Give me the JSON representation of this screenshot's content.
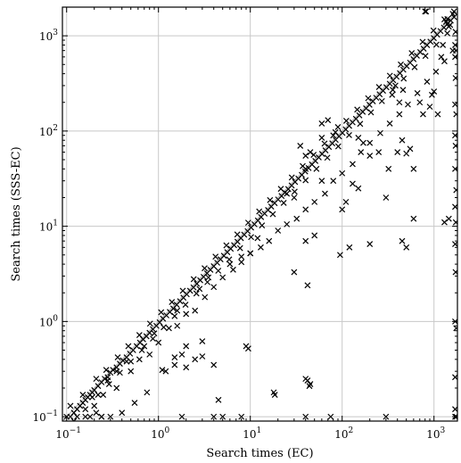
{
  "chart_data": {
    "type": "scatter",
    "title": "",
    "xlabel": "Search times (EC)",
    "ylabel": "Search times (SSS-EC)",
    "x_scale": "log",
    "y_scale": "log",
    "xlim": [
      0.09,
      1800
    ],
    "ylim": [
      0.09,
      2000
    ],
    "grid": true,
    "legend": "none",
    "marker": "x",
    "marker_color": "#000000",
    "reference_lines": [
      {
        "name": "y = x",
        "slope": 1,
        "color": "#aaaaaa"
      }
    ],
    "x_ticks": [
      {
        "value": 0.1,
        "base": "10",
        "exp": "−1"
      },
      {
        "value": 1,
        "base": "10",
        "exp": "0"
      },
      {
        "value": 10,
        "base": "10",
        "exp": "1"
      },
      {
        "value": 100,
        "base": "10",
        "exp": "2"
      },
      {
        "value": 1000,
        "base": "10",
        "exp": "3"
      }
    ],
    "y_ticks": [
      {
        "value": 0.1,
        "base": "10",
        "exp": "−1"
      },
      {
        "value": 1,
        "base": "10",
        "exp": "0"
      },
      {
        "value": 10,
        "base": "10",
        "exp": "1"
      },
      {
        "value": 100,
        "base": "10",
        "exp": "2"
      },
      {
        "value": 1000,
        "base": "10",
        "exp": "3"
      }
    ],
    "points": [
      [
        0.1,
        0.1
      ],
      [
        0.11,
        0.1
      ],
      [
        0.12,
        0.11
      ],
      [
        0.13,
        0.12
      ],
      [
        0.14,
        0.13
      ],
      [
        0.15,
        0.14
      ],
      [
        0.16,
        0.15
      ],
      [
        0.17,
        0.16
      ],
      [
        0.18,
        0.17
      ],
      [
        0.19,
        0.18
      ],
      [
        0.2,
        0.19
      ],
      [
        0.22,
        0.21
      ],
      [
        0.24,
        0.23
      ],
      [
        0.26,
        0.25
      ],
      [
        0.28,
        0.26
      ],
      [
        0.3,
        0.29
      ],
      [
        0.32,
        0.31
      ],
      [
        0.35,
        0.33
      ],
      [
        0.38,
        0.36
      ],
      [
        0.41,
        0.39
      ],
      [
        0.45,
        0.42
      ],
      [
        0.49,
        0.46
      ],
      [
        0.53,
        0.5
      ],
      [
        0.58,
        0.55
      ],
      [
        0.63,
        0.6
      ],
      [
        0.68,
        0.65
      ],
      [
        0.74,
        0.7
      ],
      [
        0.8,
        0.76
      ],
      [
        0.87,
        0.83
      ],
      [
        0.95,
        0.9
      ],
      [
        1.03,
        0.98
      ],
      [
        1.12,
        1.07
      ],
      [
        1.22,
        1.16
      ],
      [
        1.33,
        1.26
      ],
      [
        1.45,
        1.37
      ],
      [
        1.58,
        1.5
      ],
      [
        1.72,
        1.63
      ],
      [
        1.87,
        1.78
      ],
      [
        2.03,
        1.93
      ],
      [
        2.21,
        2.1
      ],
      [
        2.41,
        2.28
      ],
      [
        2.62,
        2.49
      ],
      [
        2.85,
        2.71
      ],
      [
        3.1,
        2.94
      ],
      [
        3.38,
        3.21
      ],
      [
        3.68,
        3.49
      ],
      [
        4.0,
        3.8
      ],
      [
        4.36,
        4.14
      ],
      [
        4.74,
        4.5
      ],
      [
        5.16,
        4.9
      ],
      [
        5.62,
        5.34
      ],
      [
        6.12,
        5.81
      ],
      [
        6.66,
        6.33
      ],
      [
        7.25,
        6.89
      ],
      [
        7.89,
        7.5
      ],
      [
        8.59,
        8.16
      ],
      [
        9.35,
        8.88
      ],
      [
        10.2,
        9.7
      ],
      [
        11.1,
        10.5
      ],
      [
        12.1,
        11.5
      ],
      [
        13.1,
        12.5
      ],
      [
        14.3,
        13.6
      ],
      [
        15.6,
        14.8
      ],
      [
        16.9,
        16.1
      ],
      [
        18.4,
        17.5
      ],
      [
        20.1,
        19.1
      ],
      [
        21.9,
        20.8
      ],
      [
        23.8,
        22.6
      ],
      [
        25.9,
        24.6
      ],
      [
        28.2,
        26.8
      ],
      [
        30.7,
        29.2
      ],
      [
        33.4,
        31.7
      ],
      [
        36.4,
        34.6
      ],
      [
        39.6,
        37.6
      ],
      [
        43.1,
        40.9
      ],
      [
        46.9,
        44.6
      ],
      [
        51.1,
        48.5
      ],
      [
        55.6,
        52.8
      ],
      [
        60.5,
        57.5
      ],
      [
        65.9,
        62.6
      ],
      [
        71.7,
        68.1
      ],
      [
        78.1,
        74.2
      ],
      [
        85.0,
        80.8
      ],
      [
        92.5,
        87.9
      ],
      [
        100.7,
        95.7
      ],
      [
        109.6,
        104.1
      ],
      [
        119.3,
        113.3
      ],
      [
        129.9,
        123.4
      ],
      [
        141.4,
        134.3
      ],
      [
        153.9,
        146.2
      ],
      [
        167.5,
        159.1
      ],
      [
        182.3,
        173.2
      ],
      [
        198.5,
        188.6
      ],
      [
        216.0,
        205.2
      ],
      [
        235.2,
        223.4
      ],
      [
        256.0,
        243.2
      ],
      [
        278.7,
        264.8
      ],
      [
        303.4,
        288.2
      ],
      [
        330.3,
        313.8
      ],
      [
        359.5,
        341.5
      ],
      [
        391.4,
        371.8
      ],
      [
        426.1,
        404.8
      ],
      [
        463.8,
        440.6
      ],
      [
        504.9,
        479.7
      ],
      [
        549.6,
        522.1
      ],
      [
        598.3,
        568.4
      ],
      [
        651.3,
        618.7
      ],
      [
        709.0,
        673.6
      ],
      [
        771.8,
        733.2
      ],
      [
        840.2,
        798.2
      ],
      [
        914.6,
        868.9
      ],
      [
        995.6,
        945.8
      ],
      [
        1083,
        1029
      ],
      [
        1179,
        1120
      ],
      [
        1284,
        1220
      ],
      [
        1397,
        1327
      ],
      [
        1521,
        1445
      ],
      [
        1656,
        1573
      ],
      [
        0.11,
        0.13
      ],
      [
        0.15,
        0.17
      ],
      [
        0.21,
        0.25
      ],
      [
        0.27,
        0.31
      ],
      [
        0.36,
        0.42
      ],
      [
        0.47,
        0.55
      ],
      [
        0.62,
        0.72
      ],
      [
        0.81,
        0.95
      ],
      [
        1.07,
        1.25
      ],
      [
        1.4,
        1.6
      ],
      [
        1.84,
        2.1
      ],
      [
        2.42,
        2.78
      ],
      [
        3.18,
        3.62
      ],
      [
        4.18,
        4.8
      ],
      [
        5.49,
        6.3
      ],
      [
        7.22,
        8.2
      ],
      [
        9.49,
        10.9
      ],
      [
        12.5,
        14.3
      ],
      [
        16.4,
        18.8
      ],
      [
        21.5,
        24.7
      ],
      [
        28.3,
        32.5
      ],
      [
        37.2,
        42.8
      ],
      [
        48.9,
        56.2
      ],
      [
        64.3,
        73.9
      ],
      [
        84.5,
        97.2
      ],
      [
        111,
        128
      ],
      [
        146,
        168
      ],
      [
        192,
        221
      ],
      [
        252,
        290
      ],
      [
        331,
        381
      ],
      [
        435,
        500
      ],
      [
        572,
        657
      ],
      [
        752,
        864
      ],
      [
        988,
        1136
      ],
      [
        1299,
        1490
      ],
      [
        0.12,
        0.09
      ],
      [
        0.16,
        0.12
      ],
      [
        0.22,
        0.17
      ],
      [
        0.29,
        0.22
      ],
      [
        0.38,
        0.29
      ],
      [
        0.5,
        0.38
      ],
      [
        0.66,
        0.5
      ],
      [
        0.87,
        0.66
      ],
      [
        1.14,
        0.87
      ],
      [
        1.5,
        1.14
      ],
      [
        1.97,
        1.5
      ],
      [
        2.59,
        1.97
      ],
      [
        3.41,
        2.59
      ],
      [
        4.48,
        3.41
      ],
      [
        5.89,
        4.48
      ],
      [
        7.74,
        5.89
      ],
      [
        10.2,
        7.7
      ],
      [
        13.4,
        10.2
      ],
      [
        17.6,
        13.4
      ],
      [
        23.1,
        17.6
      ],
      [
        30.4,
        23.1
      ],
      [
        40.0,
        30.4
      ],
      [
        52.5,
        40.0
      ],
      [
        69.0,
        52.5
      ],
      [
        90.7,
        69.0
      ],
      [
        119,
        90.7
      ],
      [
        157,
        119
      ],
      [
        206,
        157
      ],
      [
        271,
        206
      ],
      [
        356,
        271
      ],
      [
        468,
        356
      ],
      [
        615,
        468
      ],
      [
        808,
        615
      ],
      [
        1062,
        808
      ],
      [
        1396,
        1062
      ],
      [
        0.16,
        0.1
      ],
      [
        0.25,
        0.17
      ],
      [
        0.35,
        0.2
      ],
      [
        0.5,
        0.3
      ],
      [
        0.62,
        0.4
      ],
      [
        0.8,
        0.45
      ],
      [
        1.0,
        0.6
      ],
      [
        1.3,
        0.85
      ],
      [
        1.6,
        0.9
      ],
      [
        2.0,
        1.2
      ],
      [
        2.5,
        1.3
      ],
      [
        3.2,
        1.8
      ],
      [
        4.0,
        2.3
      ],
      [
        5.0,
        2.9
      ],
      [
        6.5,
        3.5
      ],
      [
        8.0,
        4.2
      ],
      [
        10.0,
        5.2
      ],
      [
        13.0,
        6.0
      ],
      [
        16.0,
        7.0
      ],
      [
        20.0,
        9.0
      ],
      [
        25.0,
        10.5
      ],
      [
        32.0,
        12.0
      ],
      [
        40.0,
        15.0
      ],
      [
        50.0,
        18.0
      ],
      [
        65.0,
        22.0
      ],
      [
        80.0,
        30.0
      ],
      [
        100,
        36.0
      ],
      [
        130,
        45.0
      ],
      [
        160,
        60.0
      ],
      [
        200,
        75.0
      ],
      [
        260,
        95.0
      ],
      [
        330,
        120
      ],
      [
        420,
        150
      ],
      [
        520,
        190
      ],
      [
        660,
        250
      ],
      [
        840,
        330
      ],
      [
        1050,
        420
      ],
      [
        1300,
        540
      ],
      [
        1600,
        700
      ],
      [
        0.13,
        0.1
      ],
      [
        0.18,
        0.1
      ],
      [
        0.24,
        0.1
      ],
      [
        0.3,
        0.1
      ],
      [
        0.4,
        0.11
      ],
      [
        0.55,
        0.14
      ],
      [
        0.75,
        0.18
      ],
      [
        1.1,
        0.31
      ],
      [
        1.2,
        0.3
      ],
      [
        1.5,
        0.35
      ],
      [
        1.8,
        0.45
      ],
      [
        2.0,
        0.33
      ],
      [
        2.5,
        0.4
      ],
      [
        3.0,
        0.43
      ],
      [
        4.0,
        0.35
      ],
      [
        4.5,
        0.15
      ],
      [
        5.0,
        0.1
      ],
      [
        9.0,
        0.55
      ],
      [
        9.5,
        0.52
      ],
      [
        18.0,
        0.18
      ],
      [
        18.5,
        0.17
      ],
      [
        42.0,
        0.24
      ],
      [
        44.0,
        0.21
      ],
      [
        1.8,
        0.1
      ],
      [
        4.0,
        0.1
      ],
      [
        8.0,
        0.1
      ],
      [
        40.0,
        0.1
      ],
      [
        75.0,
        0.1
      ],
      [
        300,
        0.1
      ],
      [
        1700,
        0.1
      ],
      [
        1750,
        0.1
      ],
      [
        1700,
        0.12
      ],
      [
        1700,
        0.26
      ],
      [
        1750,
        0.85
      ],
      [
        1700,
        1.0
      ],
      [
        1720,
        3.3
      ],
      [
        1700,
        6.5
      ],
      [
        1730,
        11.0
      ],
      [
        1700,
        16.0
      ],
      [
        1750,
        24.0
      ],
      [
        1700,
        40.0
      ],
      [
        1720,
        70.0
      ],
      [
        1700,
        90.0
      ],
      [
        1750,
        150
      ],
      [
        1700,
        190
      ],
      [
        1720,
        360
      ],
      [
        1700,
        600
      ],
      [
        1740,
        700
      ],
      [
        1700,
        800
      ],
      [
        1720,
        1100
      ],
      [
        1300,
        11.0
      ],
      [
        1450,
        12.0
      ],
      [
        600,
        12.0
      ],
      [
        500,
        6.0
      ],
      [
        450,
        7.0
      ],
      [
        200,
        6.5
      ],
      [
        120,
        6.0
      ],
      [
        95,
        5.0
      ],
      [
        30,
        3.3
      ],
      [
        50,
        8.0
      ],
      [
        40,
        7.0
      ],
      [
        42,
        2.4
      ],
      [
        100,
        15
      ],
      [
        110,
        18
      ],
      [
        150,
        25
      ],
      [
        130,
        28
      ],
      [
        300,
        20
      ],
      [
        320,
        40
      ],
      [
        400,
        60
      ],
      [
        450,
        80
      ],
      [
        150,
        85
      ],
      [
        170,
        75
      ],
      [
        200,
        55
      ],
      [
        250,
        60
      ],
      [
        500,
        58
      ],
      [
        550,
        65
      ],
      [
        600,
        40
      ],
      [
        30,
        20
      ],
      [
        25,
        22
      ],
      [
        40,
        40
      ],
      [
        60,
        30
      ],
      [
        10,
        5.2
      ],
      [
        12,
        7.5
      ],
      [
        8,
        4.8
      ],
      [
        6,
        4.0
      ],
      [
        2,
        0.55
      ],
      [
        1.5,
        0.42
      ],
      [
        3,
        0.62
      ],
      [
        45,
        0.22
      ],
      [
        40,
        0.25
      ],
      [
        800,
        1800
      ],
      [
        820,
        1800
      ],
      [
        700,
        200
      ],
      [
        760,
        150
      ],
      [
        950,
        240
      ],
      [
        1000,
        260
      ],
      [
        1100,
        150
      ],
      [
        900,
        180
      ],
      [
        1200,
        600
      ],
      [
        1250,
        800
      ],
      [
        1350,
        1400
      ],
      [
        1400,
        1500
      ],
      [
        1450,
        1250
      ],
      [
        1500,
        1300
      ],
      [
        1600,
        1700
      ],
      [
        1650,
        1800
      ],
      [
        350,
        240
      ],
      [
        380,
        300
      ],
      [
        420,
        200
      ],
      [
        460,
        270
      ],
      [
        35,
        70
      ],
      [
        60,
        85
      ],
      [
        60,
        120
      ],
      [
        70,
        130
      ],
      [
        40,
        55
      ],
      [
        45,
        60
      ],
      [
        80,
        90
      ],
      [
        90,
        110
      ],
      [
        2.8,
        2.2
      ],
      [
        3.5,
        2.9
      ],
      [
        0.9,
        0.75
      ],
      [
        0.7,
        0.55
      ],
      [
        0.45,
        0.38
      ],
      [
        0.35,
        0.3
      ],
      [
        0.28,
        0.24
      ],
      [
        1.6,
        1.3
      ],
      [
        0.24,
        0.1
      ],
      [
        0.21,
        0.11
      ],
      [
        0.2,
        0.13
      ],
      [
        0.19,
        0.16
      ]
    ]
  }
}
